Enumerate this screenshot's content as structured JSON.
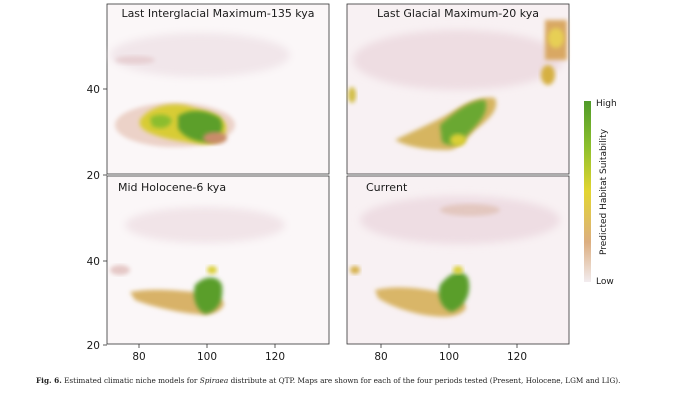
{
  "panels": [
    {
      "title": "Last Interglacial Maximum-135 kya"
    },
    {
      "title": "Last Glacial Maximum-20 kya"
    },
    {
      "title": "Mid Holocene-6 kya"
    },
    {
      "title": "Current"
    }
  ],
  "axes": {
    "y_ticks": [
      "40",
      "20"
    ],
    "x_ticks": [
      "80",
      "100",
      "120"
    ]
  },
  "legend": {
    "title": "Predicted Habitat Suitability",
    "high_label": "High",
    "low_label": "Low",
    "colors": {
      "high": "#5a9e2f",
      "mid": "#d9d12e",
      "low_orange": "#d9a066",
      "low": "#f0e8ec"
    }
  },
  "caption": {
    "label": "Fig. 6.",
    "text_before": "Estimated climatic niche models for",
    "genus": "Spiraea",
    "text_after": "distribute at QTP. Maps are shown for each of the four periods tested (Present, Holocene, LGM and LIG)."
  }
}
